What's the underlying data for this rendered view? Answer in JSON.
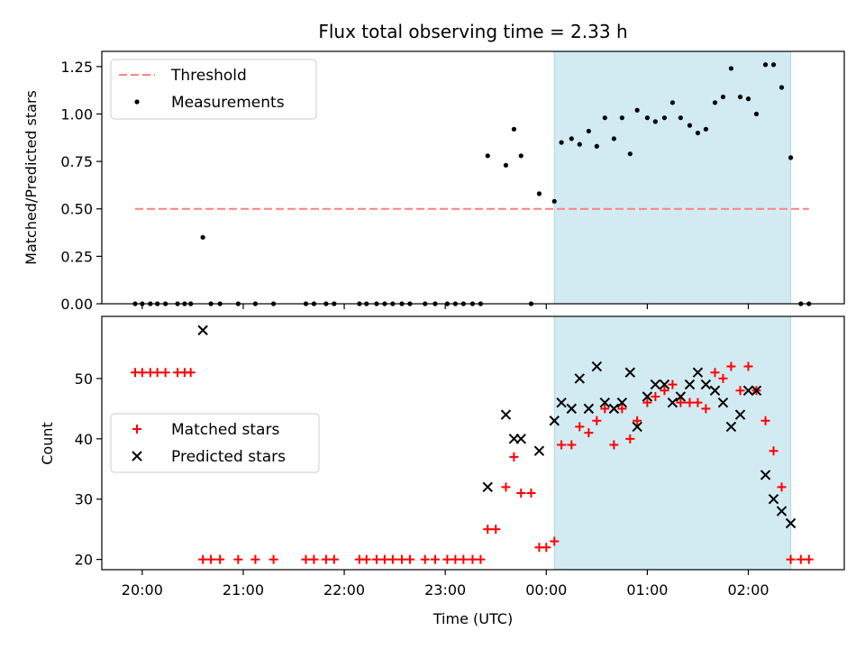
{
  "chart_data": [
    {
      "type": "scatter",
      "title": "Flux total observing time = 2.33 h",
      "xlabel": "",
      "ylabel": "Matched/Predicted stars",
      "ylim": [
        0,
        1.33
      ],
      "yticks": [
        "0.00",
        "0.25",
        "0.50",
        "0.75",
        "1.00",
        "1.25"
      ],
      "xlim_hours": [
        19.6,
        26.95
      ],
      "shaded_span_hours": [
        24.08,
        26.42
      ],
      "shaded_color": "#add8e6",
      "legend": [
        {
          "label": "Threshold",
          "marker": "dashed-line",
          "color": "#ff8080"
        },
        {
          "label": "Measurements",
          "marker": "dot",
          "color": "#000000"
        }
      ],
      "threshold": {
        "y": 0.5,
        "x_from_hours": 19.93,
        "x_to_hours": 26.6,
        "color": "#ff8080"
      },
      "series": [
        {
          "name": "Measurements",
          "color": "#000000",
          "points": [
            [
              19.93,
              0
            ],
            [
              20.0,
              0
            ],
            [
              20.08,
              0
            ],
            [
              20.15,
              0
            ],
            [
              20.23,
              0
            ],
            [
              20.35,
              0
            ],
            [
              20.42,
              0
            ],
            [
              20.48,
              0
            ],
            [
              20.6,
              0.35
            ],
            [
              20.68,
              0
            ],
            [
              20.77,
              0
            ],
            [
              20.95,
              0
            ],
            [
              21.12,
              0
            ],
            [
              21.3,
              0
            ],
            [
              21.62,
              0
            ],
            [
              21.7,
              0
            ],
            [
              21.82,
              0
            ],
            [
              21.9,
              0
            ],
            [
              22.15,
              0
            ],
            [
              22.22,
              0
            ],
            [
              22.32,
              0
            ],
            [
              22.4,
              0
            ],
            [
              22.48,
              0
            ],
            [
              22.57,
              0
            ],
            [
              22.65,
              0
            ],
            [
              22.8,
              0
            ],
            [
              22.9,
              0
            ],
            [
              23.02,
              0
            ],
            [
              23.1,
              0
            ],
            [
              23.18,
              0
            ],
            [
              23.27,
              0
            ],
            [
              23.35,
              0
            ],
            [
              23.42,
              0.78
            ],
            [
              23.6,
              0.73
            ],
            [
              23.68,
              0.92
            ],
            [
              23.75,
              0.78
            ],
            [
              23.85,
              0
            ],
            [
              23.93,
              0.58
            ],
            [
              24.08,
              0.54
            ],
            [
              24.15,
              0.85
            ],
            [
              24.25,
              0.87
            ],
            [
              24.33,
              0.84
            ],
            [
              24.42,
              0.91
            ],
            [
              24.5,
              0.83
            ],
            [
              24.58,
              0.98
            ],
            [
              24.67,
              0.87
            ],
            [
              24.75,
              0.98
            ],
            [
              24.83,
              0.79
            ],
            [
              24.9,
              1.02
            ],
            [
              25.0,
              0.98
            ],
            [
              25.08,
              0.96
            ],
            [
              25.17,
              0.98
            ],
            [
              25.25,
              1.06
            ],
            [
              25.33,
              0.98
            ],
            [
              25.42,
              0.94
            ],
            [
              25.5,
              0.9
            ],
            [
              25.58,
              0.92
            ],
            [
              25.67,
              1.06
            ],
            [
              25.75,
              1.09
            ],
            [
              25.83,
              1.24
            ],
            [
              25.92,
              1.09
            ],
            [
              26.0,
              1.08
            ],
            [
              26.08,
              1.0
            ],
            [
              26.17,
              1.26
            ],
            [
              26.25,
              1.26
            ],
            [
              26.33,
              1.14
            ],
            [
              26.42,
              0.77
            ],
            [
              26.52,
              0
            ],
            [
              26.6,
              0
            ]
          ]
        }
      ]
    },
    {
      "type": "scatter",
      "title": "",
      "xlabel": "Time (UTC)",
      "ylabel": "Count",
      "ylim": [
        18.3,
        60.3
      ],
      "yticks": [
        "20",
        "30",
        "40",
        "50"
      ],
      "xticks": [
        "20:00",
        "21:00",
        "22:00",
        "23:00",
        "00:00",
        "01:00",
        "02:00"
      ],
      "xlim_hours": [
        19.6,
        26.95
      ],
      "shaded_span_hours": [
        24.08,
        26.42
      ],
      "shaded_color": "#add8e6",
      "legend": [
        {
          "label": "Matched stars",
          "marker": "plus",
          "color": "#ff0000"
        },
        {
          "label": "Predicted stars",
          "marker": "x",
          "color": "#000000"
        }
      ],
      "series": [
        {
          "name": "Matched stars",
          "color": "#ff0000",
          "points": [
            [
              19.93,
              51
            ],
            [
              20.0,
              51
            ],
            [
              20.08,
              51
            ],
            [
              20.15,
              51
            ],
            [
              20.23,
              51
            ],
            [
              20.35,
              51
            ],
            [
              20.42,
              51
            ],
            [
              20.48,
              51
            ],
            [
              20.6,
              20
            ],
            [
              20.68,
              20
            ],
            [
              20.77,
              20
            ],
            [
              20.95,
              20
            ],
            [
              21.12,
              20
            ],
            [
              21.3,
              20
            ],
            [
              21.62,
              20
            ],
            [
              21.7,
              20
            ],
            [
              21.82,
              20
            ],
            [
              21.9,
              20
            ],
            [
              22.15,
              20
            ],
            [
              22.22,
              20
            ],
            [
              22.32,
              20
            ],
            [
              22.4,
              20
            ],
            [
              22.48,
              20
            ],
            [
              22.57,
              20
            ],
            [
              22.65,
              20
            ],
            [
              22.8,
              20
            ],
            [
              22.9,
              20
            ],
            [
              23.02,
              20
            ],
            [
              23.1,
              20
            ],
            [
              23.18,
              20
            ],
            [
              23.27,
              20
            ],
            [
              23.35,
              20
            ],
            [
              23.42,
              25
            ],
            [
              23.5,
              25
            ],
            [
              23.6,
              32
            ],
            [
              23.68,
              37
            ],
            [
              23.75,
              31
            ],
            [
              23.85,
              31
            ],
            [
              23.93,
              22
            ],
            [
              24.0,
              22
            ],
            [
              24.08,
              23
            ],
            [
              24.15,
              39
            ],
            [
              24.25,
              39
            ],
            [
              24.33,
              42
            ],
            [
              24.42,
              41
            ],
            [
              24.5,
              43
            ],
            [
              24.58,
              45
            ],
            [
              24.67,
              39
            ],
            [
              24.75,
              45
            ],
            [
              24.83,
              40
            ],
            [
              24.9,
              43
            ],
            [
              25.0,
              46
            ],
            [
              25.08,
              47
            ],
            [
              25.17,
              48
            ],
            [
              25.25,
              49
            ],
            [
              25.33,
              46
            ],
            [
              25.42,
              46
            ],
            [
              25.5,
              46
            ],
            [
              25.58,
              45
            ],
            [
              25.67,
              51
            ],
            [
              25.75,
              50
            ],
            [
              25.83,
              52
            ],
            [
              25.92,
              48
            ],
            [
              26.0,
              52
            ],
            [
              26.08,
              48
            ],
            [
              26.17,
              43
            ],
            [
              26.25,
              38
            ],
            [
              26.33,
              32
            ],
            [
              26.42,
              20
            ],
            [
              26.52,
              20
            ],
            [
              26.6,
              20
            ]
          ]
        },
        {
          "name": "Predicted stars",
          "color": "#000000",
          "points": [
            [
              20.6,
              58
            ],
            [
              23.42,
              32
            ],
            [
              23.6,
              44
            ],
            [
              23.68,
              40
            ],
            [
              23.75,
              40
            ],
            [
              23.93,
              38
            ],
            [
              24.08,
              43
            ],
            [
              24.15,
              46
            ],
            [
              24.25,
              45
            ],
            [
              24.33,
              50
            ],
            [
              24.42,
              45
            ],
            [
              24.5,
              52
            ],
            [
              24.58,
              46
            ],
            [
              24.67,
              45
            ],
            [
              24.75,
              46
            ],
            [
              24.83,
              51
            ],
            [
              24.9,
              42
            ],
            [
              25.0,
              47
            ],
            [
              25.08,
              49
            ],
            [
              25.17,
              49
            ],
            [
              25.25,
              46
            ],
            [
              25.33,
              47
            ],
            [
              25.42,
              49
            ],
            [
              25.5,
              51
            ],
            [
              25.58,
              49
            ],
            [
              25.67,
              48
            ],
            [
              25.75,
              46
            ],
            [
              25.83,
              42
            ],
            [
              25.92,
              44
            ],
            [
              26.0,
              48
            ],
            [
              26.08,
              48
            ],
            [
              26.17,
              34
            ],
            [
              26.25,
              30
            ],
            [
              26.33,
              28
            ],
            [
              26.42,
              26
            ]
          ]
        }
      ]
    }
  ]
}
